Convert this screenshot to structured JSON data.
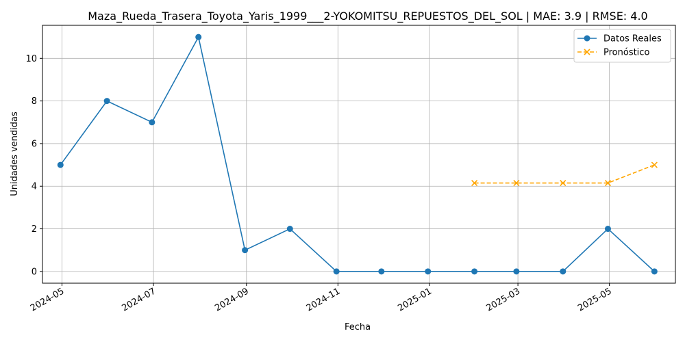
{
  "chart_data": {
    "type": "line",
    "title": "Maza_Rueda_Trasera_Toyota_Yaris_1999___2-YOKOMITSU_REPUESTOS_DEL_SOL | MAE: 3.9 | RMSE: 4.0",
    "xlabel": "Fecha",
    "ylabel": "Unidades vendidas",
    "x_ticks": [
      "2024-05",
      "2024-07",
      "2024-09",
      "2024-11",
      "2025-01",
      "2025-03",
      "2025-05"
    ],
    "y_ticks": [
      "0",
      "2",
      "4",
      "6",
      "8",
      "10"
    ],
    "ylim": [
      -0.55,
      11.55
    ],
    "xlim": [
      "2024-04-18",
      "2025-06-14"
    ],
    "grid": true,
    "legend_position": "top-right",
    "series": [
      {
        "name": "Datos Reales",
        "color": "#1f77b4",
        "line_style": "solid",
        "marker": "circle",
        "points": [
          {
            "x": "2024-04-30",
            "y": 5
          },
          {
            "x": "2024-05-31",
            "y": 8
          },
          {
            "x": "2024-06-30",
            "y": 7
          },
          {
            "x": "2024-07-31",
            "y": 11
          },
          {
            "x": "2024-08-31",
            "y": 1
          },
          {
            "x": "2024-09-30",
            "y": 2
          },
          {
            "x": "2024-10-31",
            "y": 0
          },
          {
            "x": "2024-11-30",
            "y": 0
          },
          {
            "x": "2024-12-31",
            "y": 0
          },
          {
            "x": "2025-01-31",
            "y": 0
          },
          {
            "x": "2025-02-28",
            "y": 0
          },
          {
            "x": "2025-03-31",
            "y": 0
          },
          {
            "x": "2025-04-30",
            "y": 2
          },
          {
            "x": "2025-05-31",
            "y": 0
          }
        ]
      },
      {
        "name": "Pronóstico",
        "color": "#ffa500",
        "line_style": "dashed",
        "marker": "x",
        "points": [
          {
            "x": "2025-01-31",
            "y": 4.15
          },
          {
            "x": "2025-02-28",
            "y": 4.15
          },
          {
            "x": "2025-03-31",
            "y": 4.15
          },
          {
            "x": "2025-04-30",
            "y": 4.15
          },
          {
            "x": "2025-05-31",
            "y": 5.0
          }
        ]
      }
    ]
  }
}
